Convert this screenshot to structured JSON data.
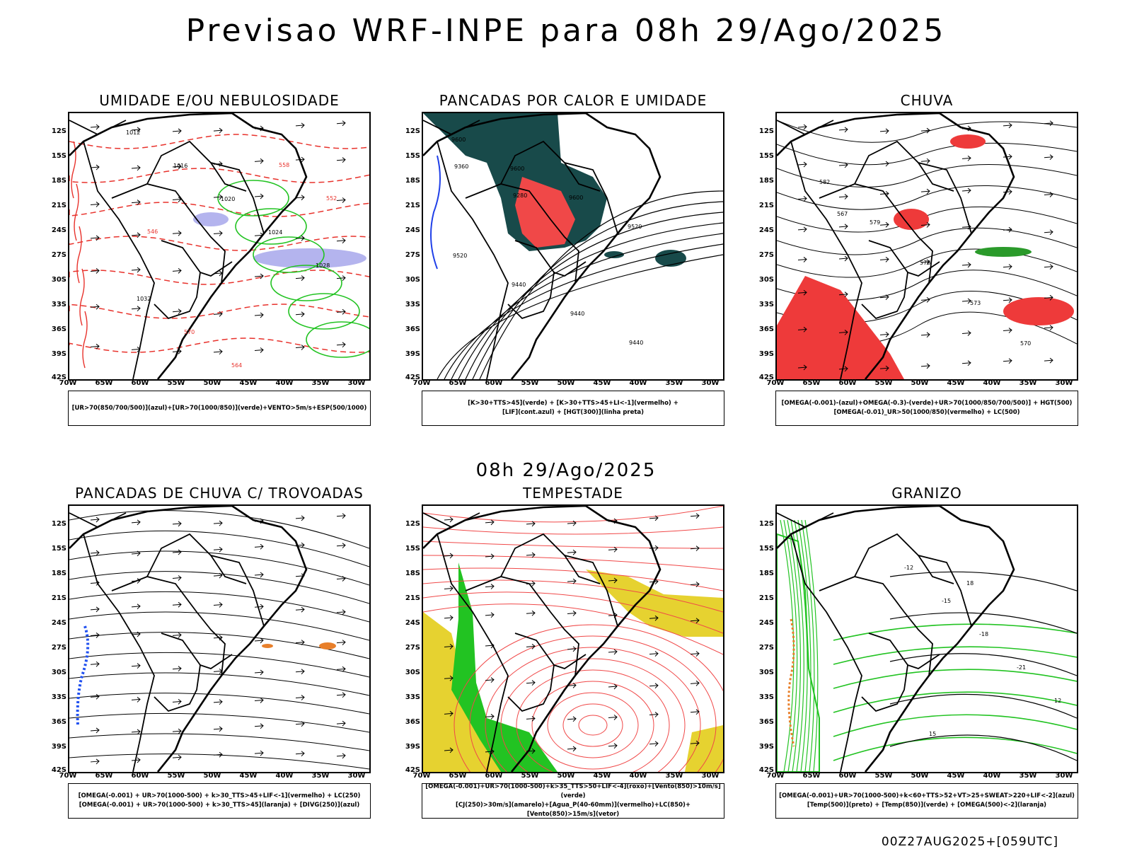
{
  "title": "Previsao WRF-INPE  para 08h 29/Ago/2025",
  "mid_title": "08h 29/Ago/2025",
  "footer": "00Z27AUG2025+[059UTC]",
  "lat_labels": [
    "12S",
    "15S",
    "18S",
    "21S",
    "24S",
    "27S",
    "30S",
    "33S",
    "36S",
    "39S",
    "42S"
  ],
  "lon_labels": [
    "70W",
    "65W",
    "60W",
    "55W",
    "50W",
    "45W",
    "40W",
    "35W",
    "30W"
  ],
  "panels": [
    {
      "title": "UMIDADE E/OU NEBULOSIDADE",
      "legend": [
        "[UR>70(850/700/500)](azul)+[UR>70(1000/850)](verde)+VENTO>5m/s+ESP(500/1000)"
      ],
      "contour_labels": [
        "1012",
        "1016",
        "1020",
        "1024",
        "1028",
        "1032",
        "570",
        "564",
        "558",
        "552",
        "546"
      ]
    },
    {
      "title": "PANCADAS POR CALOR E UMIDADE",
      "legend": [
        "[K>30+TTS>45](verde) + [K>30+TTS>45+LI<-1](vermelho) +",
        "[LIF](cont.azul) + [HGT(300)](linha preta)"
      ],
      "contour_labels": [
        "9600",
        "9600",
        "9600",
        "9520",
        "9520",
        "9440",
        "9440",
        "9440",
        "9360",
        "9280"
      ]
    },
    {
      "title": "CHUVA",
      "legend": [
        "[OMEGA(-0.001)-(azul)+OMEGA(-0.3)-(verde)+UR>70(1000/850/700/500)] + HGT(500)",
        "[OMEGA(-0.01)_UR>50(1000/850)(vermelho) + LC(500)"
      ],
      "contour_labels": [
        "582",
        "579",
        "576",
        "573",
        "570",
        "567"
      ]
    },
    {
      "title": "PANCADAS DE CHUVA C/ TROVOADAS",
      "legend": [
        "[OMEGA(-0.001) + UR>70(1000-500) + k>30_TTS>45+LIF<-1](vermelho) + LC(250)",
        "[OMEGA(-0.001) + UR>70(1000-500) + k>30_TTS>45](laranja) + [DIVG(250)](azul)"
      ],
      "contour_labels": []
    },
    {
      "title": "TEMPESTADE",
      "legend": [
        "[OMEGA(-0.001)+UR>70(1000-500)+k>35_TTS>50+LIF<-4](roxo)+[Vento(850)>10m/s](verde)",
        "[CJ(250)>30m/s](amarelo)+[Agua_P(40-60mm)](vermelho)+LC(850)+[Vento(850)>15m/s](vetor)"
      ],
      "contour_labels": []
    },
    {
      "title": "GRANIZO",
      "legend": [
        "[OMEGA(-0.001)+UR>70(1000-500)+k<60+TTS>52+VT>25+SWEAT>220+LIF<-2](azul)",
        "[Temp(500)](preto) + [Temp(850)](verde) + [OMEGA(500)<-2](laranja)"
      ],
      "contour_labels": [
        "-12",
        "-15",
        "-18",
        "-21",
        "12",
        "15",
        "18"
      ]
    }
  ]
}
